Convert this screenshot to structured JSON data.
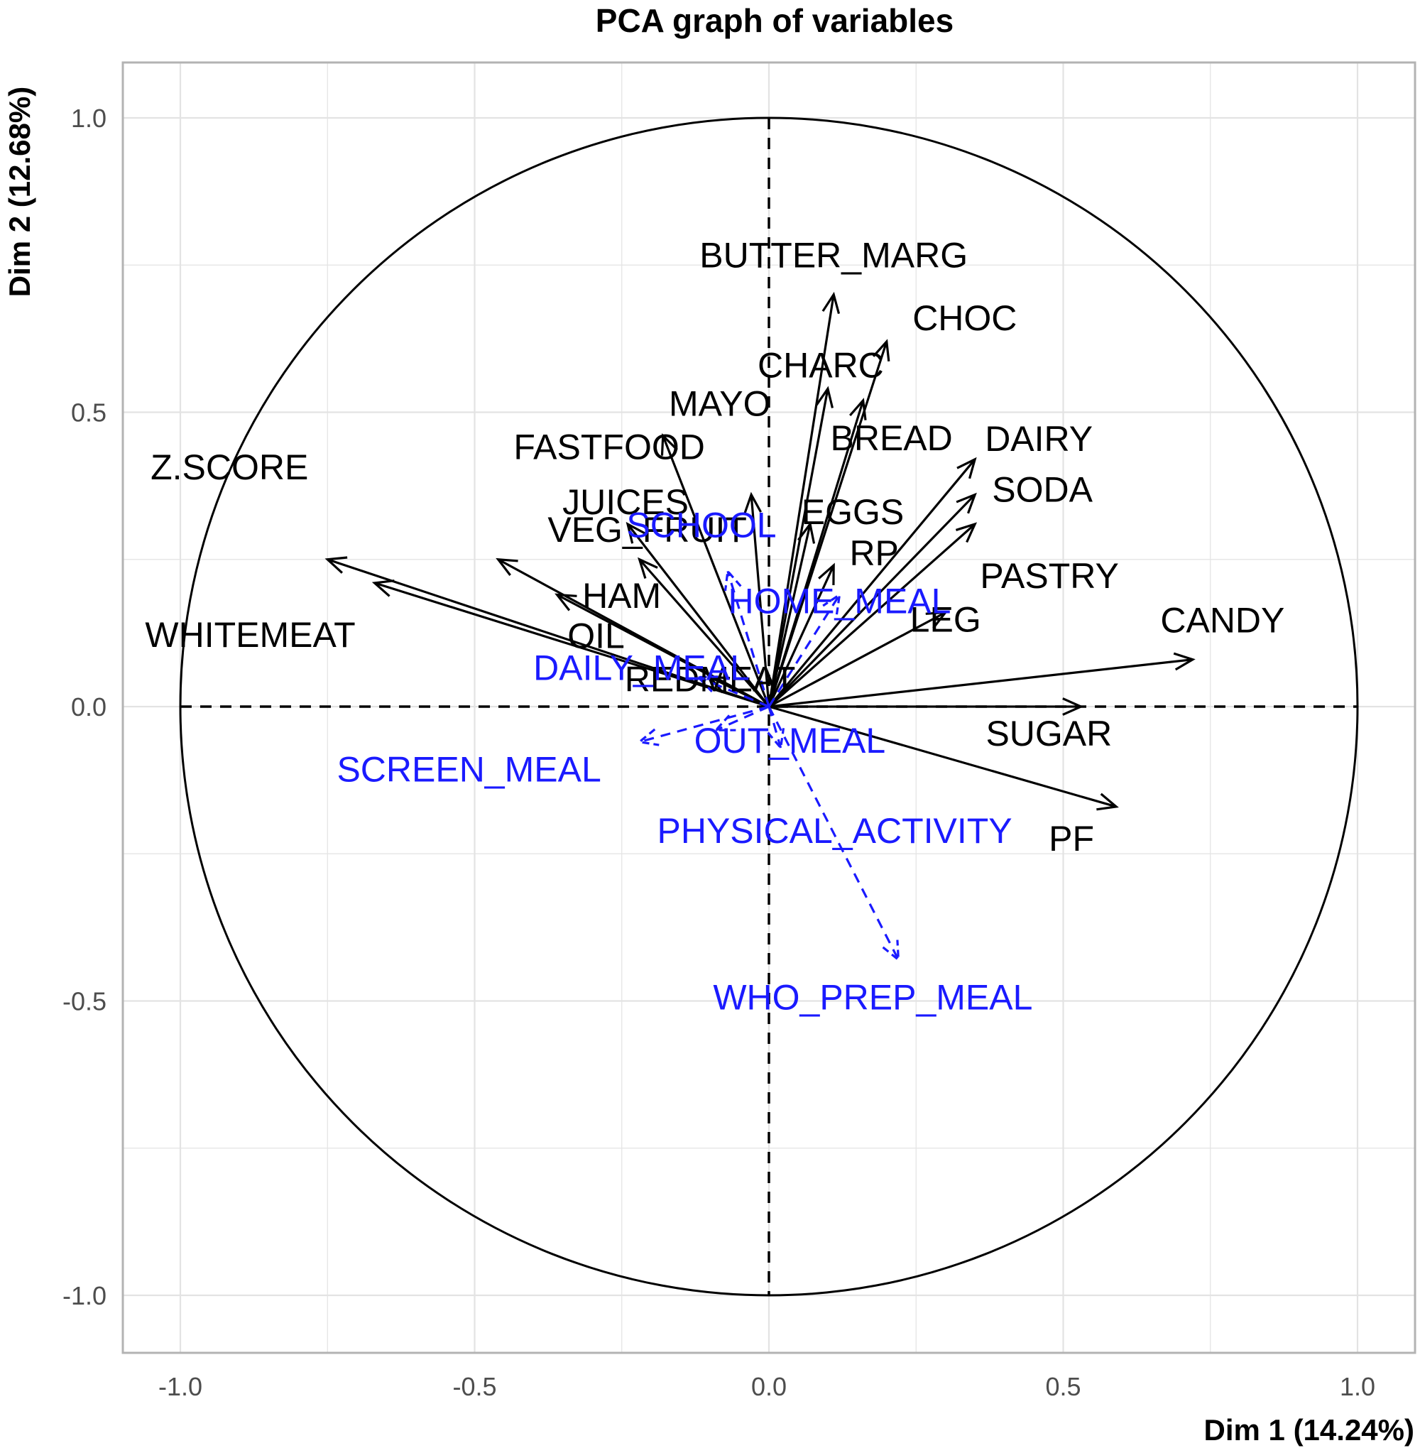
{
  "chart_data": {
    "type": "scatter",
    "subtype": "pca-correlation-circle",
    "title": "PCA graph of variables",
    "xlabel": "Dim 1 (14.24%)",
    "ylabel": "Dim 2 (12.68%)",
    "xlim": [
      -1.1,
      1.1
    ],
    "ylim": [
      -1.1,
      1.1
    ],
    "xticks": [
      "-1.0",
      "-0.5",
      "0.0",
      "0.5",
      "1.0"
    ],
    "yticks": [
      "-1.0",
      "-0.5",
      "0.0",
      "0.5",
      "1.0"
    ],
    "grid": true,
    "unit_circle": true,
    "colors": {
      "active": "#000000",
      "supplementary": "#1a1aff",
      "grid": "#e3e3e3",
      "panel_border": "#b3b3b3"
    },
    "series": [
      {
        "name": "active",
        "line_style": "solid",
        "points": [
          {
            "name": "BUTTER_MARG",
            "x": 0.11,
            "y": 0.7
          },
          {
            "name": "CHOC",
            "x": 0.2,
            "y": 0.62
          },
          {
            "name": "CHARC",
            "x": 0.1,
            "y": 0.54
          },
          {
            "name": "BREAD",
            "x": 0.16,
            "y": 0.52
          },
          {
            "name": "MAYO",
            "x": -0.18,
            "y": 0.46
          },
          {
            "name": "DAIRY",
            "x": 0.35,
            "y": 0.42
          },
          {
            "name": "FASTFOOD",
            "x": -0.03,
            "y": 0.36
          },
          {
            "name": "SODA",
            "x": 0.35,
            "y": 0.36
          },
          {
            "name": "EGGS",
            "x": 0.07,
            "y": 0.31
          },
          {
            "name": "PASTRY",
            "x": 0.35,
            "y": 0.31
          },
          {
            "name": "JUICES",
            "x": -0.24,
            "y": 0.31
          },
          {
            "name": "Z.SCORE",
            "x": -0.75,
            "y": 0.25
          },
          {
            "name": "VEG_FRUIT",
            "x": -0.46,
            "y": 0.25
          },
          {
            "name": "HAM",
            "x": -0.22,
            "y": 0.25
          },
          {
            "name": "RP",
            "x": 0.11,
            "y": 0.24
          },
          {
            "name": "WHITEMEAT",
            "x": -0.67,
            "y": 0.21
          },
          {
            "name": "OIL",
            "x": -0.36,
            "y": 0.19
          },
          {
            "name": "LEG",
            "x": 0.3,
            "y": 0.16
          },
          {
            "name": "REDMEAT",
            "x": -0.1,
            "y": 0.05
          },
          {
            "name": "CANDY",
            "x": 0.72,
            "y": 0.08
          },
          {
            "name": "SUGAR",
            "x": 0.53,
            "y": 0.0
          },
          {
            "name": "PF",
            "x": 0.59,
            "y": -0.17
          }
        ]
      },
      {
        "name": "supplementary",
        "line_style": "dashed",
        "points": [
          {
            "name": "SCHOOL",
            "x": -0.07,
            "y": 0.23
          },
          {
            "name": "HOME_MEAL",
            "x": 0.12,
            "y": 0.19
          },
          {
            "name": "DAILY_MEAL",
            "x": -0.12,
            "y": 0.05
          },
          {
            "name": "OUT_MEAL",
            "x": -0.09,
            "y": -0.04
          },
          {
            "name": "SCREEN_MEAL",
            "x": -0.22,
            "y": -0.06
          },
          {
            "name": "PHYSICAL_ACTIVITY",
            "x": 0.02,
            "y": -0.07
          },
          {
            "name": "WHO_PREP_MEAL",
            "x": 0.22,
            "y": -0.43
          }
        ]
      }
    ]
  }
}
